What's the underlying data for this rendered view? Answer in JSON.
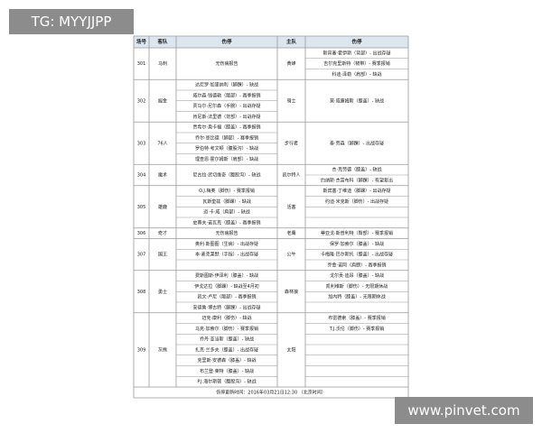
{
  "watermark": {
    "top": "TG: MYYJJPP",
    "bottom": "www.pinvet.com"
  },
  "table": {
    "headers": [
      "场号",
      "客队",
      "伤停",
      "主队",
      "伤停"
    ],
    "games": [
      {
        "no": "301",
        "away": "马刺",
        "away_injuries": [
          "无伤病报告"
        ],
        "home": "黄蜂",
        "home_injuries": [
          "斯宾塞·霍伊斯（背部）- 出战存疑",
          "吉尔克里斯特（韧带）- 赛季报销",
          "科迪·泽勒（肩部）- 缺战"
        ]
      },
      {
        "no": "302",
        "away": "掘金",
        "away_injuries": [
          "达尼罗·加里纳利（脚踝）- 缺战",
          "威尔森·钱德勒（髋部）- 赛季报销",
          "贾马尔·尼尔森（手腕）- 出战存疑",
          "肯尼斯·法里德（背部）- 出战存疑"
        ],
        "home": "骑士",
        "home_injuries": [
          "莫·威廉姆斯（膝盖）- 缺战"
        ]
      },
      {
        "no": "303",
        "away": "76人",
        "away_injuries": [
          "贾希尔·奥卡福（膝盖）- 赛季报销",
          "乔尔·恩比德（脚部）- 赛季报销",
          "罗伯特·考文顿（腹股沟）- 缺战",
          "理查恩·霍尔姆斯（肩部）- 缺战"
        ],
        "home": "步行者",
        "home_injuries": [
          "泰·劳森（脚踝）- 出战存疑"
        ]
      },
      {
        "no": "304",
        "away": "魔术",
        "away_injuries": [
          "尼古拉·武切维奇（腹股沟）- 缺战"
        ],
        "home": "凯尔特人",
        "home_injuries": [
          "杰·克劳德（膝盖）- 缺战",
          "约纳斯·杰雷布科（脚踝）- 有望复出"
        ]
      },
      {
        "no": "305",
        "away": "雄鹿",
        "away_injuries": [
          "O.J.梅奥（脚伤）- 赛季报销",
          "瓦斯奎兹（脚踝）- 缺战",
          "迈·卡·威（肩部）- 缺战",
          "史蒂夫·诺瓦克（膝盖）- 赛季报销"
        ],
        "home": "活塞",
        "home_injuries": [
          "斯宾塞·丁维迪（脚踝）- 出战存疑",
          "约迪·米克斯（脚伤）- 出战存疑"
        ]
      },
      {
        "no": "306",
        "away": "奇才",
        "away_injuries": [
          "无伤病报告"
        ],
        "home": "老鹰",
        "home_injuries": [
          "蒂亚戈·斯普利特（臀部）- 赛季报销"
        ]
      },
      {
        "no": "307",
        "away": "国王",
        "away_injuries": [
          "奥利·斯图图（生病）- 出战存疑",
          "本·麦克莱默（手指）- 出战存疑"
        ],
        "home": "公牛",
        "home_injuries": [
          "保罗·加索尔（膝盖）- 缺战",
          "卡梅隆·巴尔斯托（膝盖）- 出战存疑",
          "乔金·诺阿（肩膀）- 赛季报销"
        ]
      },
      {
        "no": "308",
        "away": "勇士",
        "away_injuries": [
          "费斯图斯·伊泽利（膝盖）- 缺战",
          "伊戈达拉（脚踝）- 缺战至4月初",
          "凯文·卢尼（髋部）- 赛季报销",
          "安德鲁·博古特（脚踝）- 出战存疑"
        ],
        "home": "森林狼",
        "home_injuries": [
          "戈尔贡·迪昂（膝盖）- 缺战",
          "凯利维斯（脚伤）- 无限期休战",
          "加内特（膝盖）- 无限期休战"
        ]
      },
      {
        "no": "309",
        "away": "灰熊",
        "away_injuries": [
          "迈克·康利（脚伤）- 缺战",
          "马克·加索尔（脚伤）- 赛季报销",
          "乔丹·亚当斯（膝盖）- 缺战",
          "扎克·兰多夫（膝盖）- 出战存疑",
          "克里斯·安德森（膝盖）- 缺战",
          "布兰登·莱特（膝盖）- 缺战",
          "P.J.海尔斯顿（腹股沟）- 缺战"
        ],
        "home": "太阳",
        "home_injuries": [
          "布雷德索（膝盖）- 赛季报销",
          "T.J.沃伦（脚伤）- 赛季报销"
        ]
      }
    ],
    "footer": "伤停更新时间：2016年03月21日12:30 （北京时间）"
  }
}
